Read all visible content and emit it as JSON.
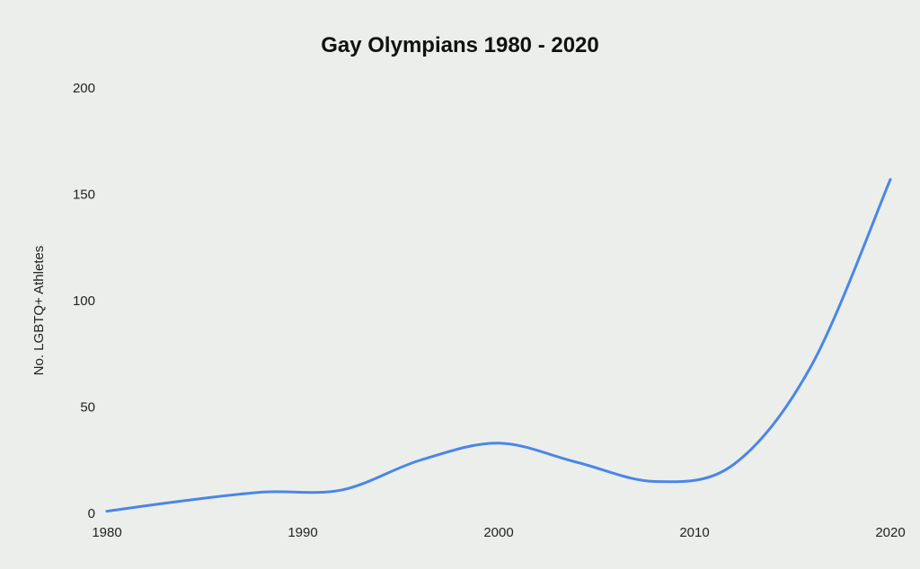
{
  "chart_data": {
    "type": "line",
    "title": "Gay Olympians 1980 - 2020",
    "xlabel": "",
    "ylabel": "No. LGBTQ+ Athletes",
    "x_ticks": [
      "1980",
      "1990",
      "2000",
      "2010",
      "2020"
    ],
    "y_ticks": [
      "0",
      "50",
      "100",
      "150",
      "200"
    ],
    "xlim": [
      1980,
      2020
    ],
    "ylim": [
      0,
      200
    ],
    "grid": false,
    "legend": "none",
    "series": [
      {
        "color": "#4a86e8",
        "x": [
          1980,
          1984,
          1988,
          1992,
          1996,
          2000,
          2004,
          2008,
          2012,
          2016,
          2020
        ],
        "y": [
          1,
          6,
          10,
          11,
          25,
          33,
          24,
          15,
          23,
          70,
          157
        ]
      }
    ]
  }
}
